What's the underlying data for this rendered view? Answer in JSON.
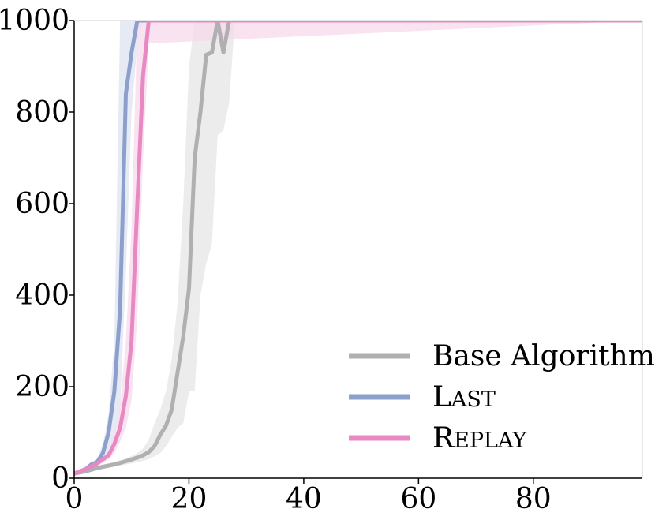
{
  "chart_data": {
    "type": "line",
    "title": "",
    "xlabel": "",
    "ylabel": "",
    "xlim": [
      0,
      99
    ],
    "ylim": [
      0,
      1000
    ],
    "xticks": [
      0,
      20,
      40,
      60,
      80
    ],
    "yticks": [
      0,
      200,
      400,
      600,
      800,
      1000
    ],
    "grid": false,
    "legend_position": "bottom-right",
    "series": [
      {
        "name": "Base Algorithm",
        "legend_parts": [
          {
            "text": "Base Algorithm",
            "sc": false
          }
        ],
        "color": "#b0b0b0",
        "band_color": "#e6e6e6",
        "x": [
          0,
          2,
          4,
          5,
          7,
          9,
          11,
          12,
          13,
          14,
          15,
          16,
          17,
          18,
          19,
          20,
          21,
          22,
          23,
          24,
          25,
          26,
          27,
          28,
          99
        ],
        "y": [
          10,
          15,
          22,
          25,
          30,
          37,
          45,
          50,
          57,
          70,
          95,
          115,
          150,
          230,
          310,
          415,
          700,
          800,
          925,
          930,
          1000,
          930,
          1000,
          1000,
          1000
        ],
        "lower": [
          10,
          12,
          18,
          20,
          25,
          30,
          35,
          38,
          42,
          48,
          55,
          70,
          90,
          110,
          120,
          190,
          190,
          400,
          470,
          510,
          750,
          760,
          820,
          1000,
          1000
        ],
        "upper": [
          10,
          18,
          27,
          30,
          36,
          43,
          55,
          65,
          85,
          120,
          150,
          190,
          260,
          380,
          600,
          900,
          1000,
          1000,
          1000,
          1000,
          1000,
          1000,
          1000,
          1000,
          1000
        ]
      },
      {
        "name": "Last",
        "legend_parts": [
          {
            "text": "L",
            "sc": false
          },
          {
            "text": "AST",
            "sc": true
          }
        ],
        "color": "#8da0cb",
        "band_color": "#dde3f2",
        "x": [
          0,
          2,
          3,
          4,
          5,
          6,
          7,
          8,
          9,
          10,
          11,
          12,
          99
        ],
        "y": [
          10,
          20,
          30,
          35,
          55,
          100,
          190,
          370,
          840,
          930,
          1000,
          1000,
          1000
        ],
        "lower": [
          10,
          18,
          25,
          30,
          40,
          60,
          90,
          150,
          450,
          800,
          950,
          1000,
          1000
        ],
        "upper": [
          10,
          22,
          35,
          42,
          75,
          140,
          300,
          1000,
          1000,
          1000,
          1000,
          1000,
          1000
        ]
      },
      {
        "name": "Replay",
        "legend_parts": [
          {
            "text": "R",
            "sc": false
          },
          {
            "text": "EPLAY",
            "sc": true
          }
        ],
        "color": "#e78ac3",
        "band_color": "#f8d9ec",
        "x": [
          0,
          2,
          4,
          6,
          7,
          8,
          9,
          10,
          11,
          12,
          13,
          99
        ],
        "y": [
          10,
          20,
          32,
          50,
          75,
          110,
          180,
          300,
          600,
          880,
          1000,
          1000
        ],
        "lower": [
          10,
          18,
          28,
          40,
          55,
          80,
          110,
          170,
          350,
          700,
          950,
          1000
        ],
        "upper": [
          10,
          22,
          36,
          60,
          100,
          160,
          300,
          550,
          1000,
          1000,
          1000,
          1000
        ]
      }
    ]
  }
}
